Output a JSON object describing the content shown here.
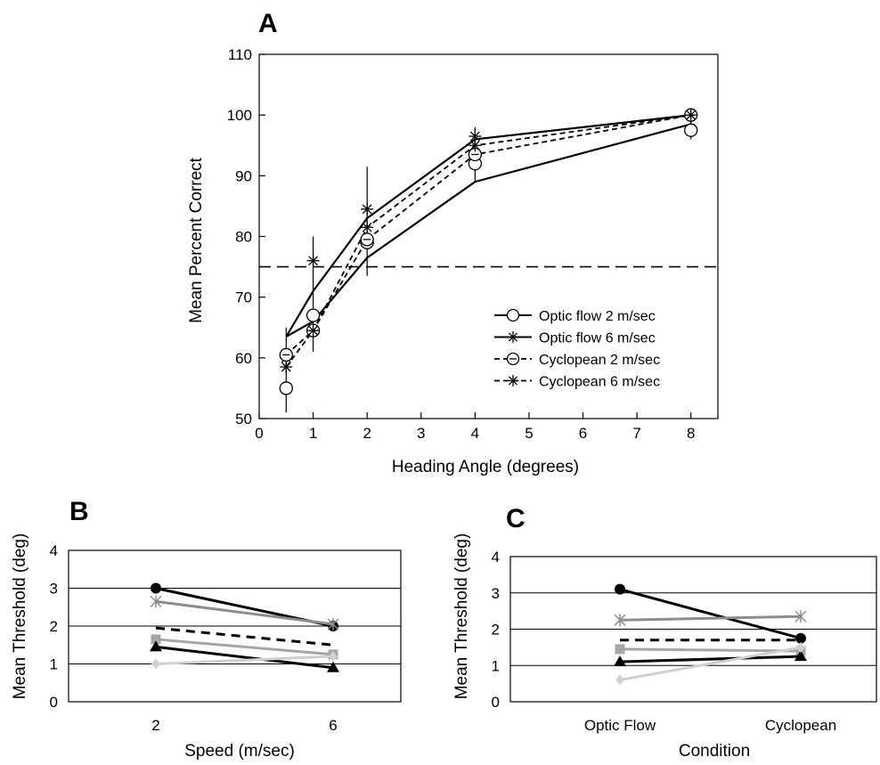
{
  "chart_data": [
    {
      "panel": "A",
      "type": "line",
      "xlabel": "Heading Angle (degrees)",
      "ylabel": "Mean Percent Correct",
      "xlim": [
        0,
        8.5
      ],
      "ylim": [
        50,
        110
      ],
      "xticks": [
        0,
        1,
        2,
        3,
        4,
        5,
        6,
        7,
        8
      ],
      "yticks": [
        50,
        60,
        70,
        80,
        90,
        100,
        110
      ],
      "reference_line": {
        "y": 75,
        "style": "dashed"
      },
      "legend_position": "lower-right",
      "series": [
        {
          "name": "Optic flow 2 m/sec",
          "line": "solid",
          "marker": "circle",
          "x": [
            0.5,
            1,
            2,
            4,
            8
          ],
          "y": [
            55,
            67,
            79,
            92,
            97.5
          ],
          "err": [
            4,
            0,
            0,
            0,
            0
          ]
        },
        {
          "name": "Optic flow 6 m/sec",
          "line": "solid",
          "marker": "star",
          "x": [
            0.5,
            1,
            2,
            4,
            8
          ],
          "y": [
            60,
            76,
            84.5,
            96.5,
            100
          ],
          "err": [
            5,
            4,
            7,
            1.5,
            0
          ]
        },
        {
          "name": "Cyclopean 2 m/sec",
          "line": "dashed",
          "marker": "circle-minus",
          "x": [
            0.5,
            1,
            2,
            4,
            8
          ],
          "y": [
            60.5,
            64.5,
            79.5,
            93.5,
            100
          ],
          "err": [
            0,
            0,
            0,
            0,
            0
          ]
        },
        {
          "name": "Cyclopean 6 m/sec",
          "line": "dashed",
          "marker": "star",
          "x": [
            0.5,
            1,
            2,
            4,
            8
          ],
          "y": [
            58.5,
            64.5,
            81.5,
            95,
            100
          ],
          "err": [
            0,
            0,
            0,
            0,
            0
          ]
        }
      ],
      "band": {
        "upper": [
          [
            0.5,
            63.5
          ],
          [
            1,
            71
          ],
          [
            2,
            83
          ],
          [
            4,
            96
          ],
          [
            8,
            100
          ]
        ],
        "lower": [
          [
            0.5,
            63.5
          ],
          [
            1,
            66
          ],
          [
            2,
            76.5
          ],
          [
            4,
            89
          ],
          [
            8,
            98.5
          ]
        ]
      },
      "error_bars": [
        {
          "x": 0.5,
          "low": 51,
          "high": 65
        },
        {
          "x": 1,
          "low": 61,
          "high": 80
        },
        {
          "x": 2,
          "low": 73.5,
          "high": 91.5
        },
        {
          "x": 4,
          "low": 89,
          "high": 98
        },
        {
          "x": 8,
          "low": 96,
          "high": 99
        }
      ]
    },
    {
      "panel": "B",
      "type": "line",
      "xlabel": "Speed (m/sec)",
      "ylabel": "Mean Threshold (deg)",
      "categories": [
        "2",
        "6"
      ],
      "ylim": [
        0,
        4
      ],
      "yticks": [
        0,
        1,
        2,
        3,
        4
      ],
      "grid": true,
      "series": [
        {
          "color": "#000000",
          "width": 3,
          "dash": false,
          "marker": "circle",
          "values": [
            3.0,
            2.0
          ]
        },
        {
          "color": "#8c8c8c",
          "width": 3,
          "dash": false,
          "marker": "cross",
          "values": [
            2.65,
            2.05
          ]
        },
        {
          "color": "#000000",
          "width": 3,
          "dash": true,
          "marker": "none",
          "values": [
            1.95,
            1.5
          ]
        },
        {
          "color": "#a6a6a6",
          "width": 3,
          "dash": false,
          "marker": "square",
          "values": [
            1.65,
            1.25
          ]
        },
        {
          "color": "#000000",
          "width": 3,
          "dash": false,
          "marker": "triangle",
          "values": [
            1.45,
            0.9
          ]
        },
        {
          "color": "#d0d0d0",
          "width": 3,
          "dash": false,
          "marker": "diamond",
          "values": [
            1.0,
            1.2
          ]
        }
      ]
    },
    {
      "panel": "C",
      "type": "line",
      "xlabel": "Condition",
      "ylabel": "Mean Threshold (deg)",
      "categories": [
        "Optic Flow",
        "Cyclopean"
      ],
      "ylim": [
        0,
        4
      ],
      "yticks": [
        0,
        1,
        2,
        3,
        4
      ],
      "grid": true,
      "series": [
        {
          "color": "#000000",
          "width": 3,
          "dash": false,
          "marker": "circle",
          "values": [
            3.1,
            1.75
          ]
        },
        {
          "color": "#8c8c8c",
          "width": 3,
          "dash": false,
          "marker": "cross",
          "values": [
            2.25,
            2.35
          ]
        },
        {
          "color": "#000000",
          "width": 3,
          "dash": true,
          "marker": "none",
          "values": [
            1.7,
            1.7
          ]
        },
        {
          "color": "#a6a6a6",
          "width": 3,
          "dash": false,
          "marker": "square",
          "values": [
            1.45,
            1.4
          ]
        },
        {
          "color": "#000000",
          "width": 3,
          "dash": false,
          "marker": "triangle",
          "values": [
            1.1,
            1.25
          ]
        },
        {
          "color": "#d0d0d0",
          "width": 3,
          "dash": false,
          "marker": "diamond",
          "values": [
            0.6,
            1.5
          ]
        }
      ]
    }
  ]
}
